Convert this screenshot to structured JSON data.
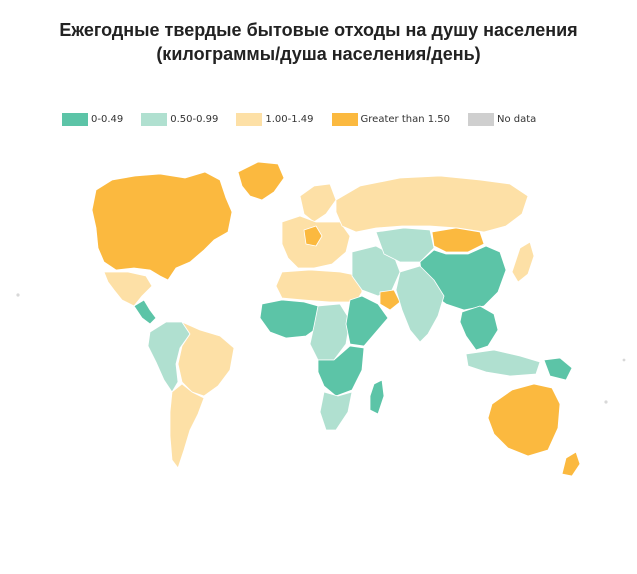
{
  "title": {
    "line1": "Ежегодные твердые бытовые отходы на душу населения",
    "line2": "(килограммы/душа населения/день)"
  },
  "legend": [
    {
      "label": "0-0.49",
      "color": "#5cc4a7"
    },
    {
      "label": "0.50-0.99",
      "color": "#b0e0d0"
    },
    {
      "label": "1.00-1.49",
      "color": "#fde0a6"
    },
    {
      "label": "Greater than 1.50",
      "color": "#fbb93f"
    },
    {
      "label": "No data",
      "color": "#cfcfcf"
    }
  ],
  "regions": [
    {
      "name": "north-america",
      "category": 3
    },
    {
      "name": "greenland",
      "category": 3
    },
    {
      "name": "mexico",
      "category": 2
    },
    {
      "name": "central-america",
      "category": 0
    },
    {
      "name": "south-america-west",
      "category": 1
    },
    {
      "name": "brazil",
      "category": 2
    },
    {
      "name": "argentina-chile",
      "category": 2
    },
    {
      "name": "europe",
      "category": 2
    },
    {
      "name": "germany",
      "category": 3
    },
    {
      "name": "scandinavia",
      "category": 2
    },
    {
      "name": "russia",
      "category": 2
    },
    {
      "name": "north-africa",
      "category": 2
    },
    {
      "name": "west-africa",
      "category": 0
    },
    {
      "name": "central-africa",
      "category": 1
    },
    {
      "name": "east-africa",
      "category": 0
    },
    {
      "name": "southern-africa",
      "category": 0
    },
    {
      "name": "south-africa",
      "category": 1
    },
    {
      "name": "madagascar",
      "category": 0
    },
    {
      "name": "middle-east",
      "category": 1
    },
    {
      "name": "gulf-states",
      "category": 3
    },
    {
      "name": "central-asia",
      "category": 1
    },
    {
      "name": "mongolia",
      "category": 3
    },
    {
      "name": "china",
      "category": 0
    },
    {
      "name": "india",
      "category": 1
    },
    {
      "name": "southeast-asia",
      "category": 0
    },
    {
      "name": "japan",
      "category": 2
    },
    {
      "name": "indonesia",
      "category": 1
    },
    {
      "name": "papua",
      "category": 0
    },
    {
      "name": "australia",
      "category": 3
    },
    {
      "name": "new-zealand",
      "category": 3
    }
  ]
}
